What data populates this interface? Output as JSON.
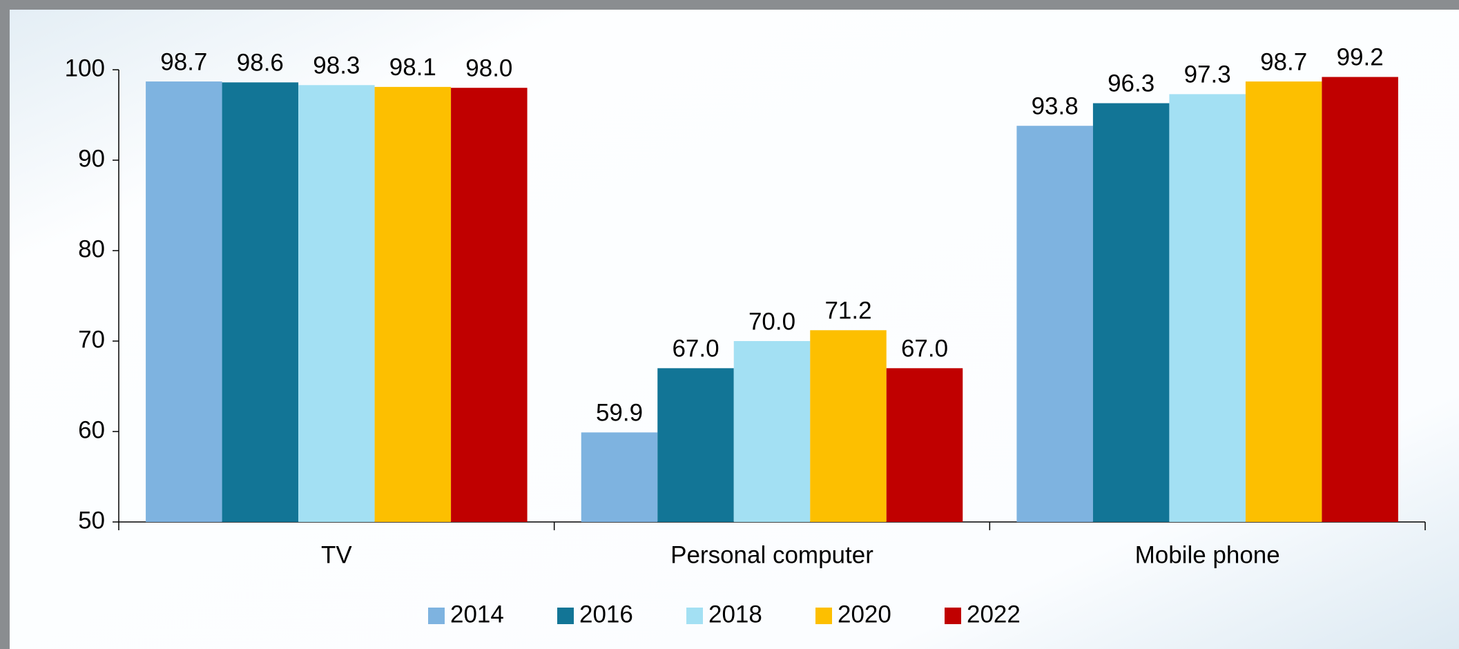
{
  "chart_data": {
    "type": "bar",
    "categories": [
      "TV",
      "Personal computer",
      "Mobile phone"
    ],
    "series": [
      {
        "name": "2014",
        "color": "#7eb3e0",
        "values": [
          98.7,
          59.9,
          93.8
        ],
        "value_labels": [
          "98.7",
          "59.9",
          "93.8"
        ]
      },
      {
        "name": "2016",
        "color": "#127596",
        "values": [
          98.6,
          67.0,
          96.3
        ],
        "value_labels": [
          "98.6",
          "67.0",
          "96.3"
        ]
      },
      {
        "name": "2018",
        "color": "#a3e0f3",
        "values": [
          98.3,
          70.0,
          97.3
        ],
        "value_labels": [
          "98.3",
          "70.0",
          "97.3"
        ]
      },
      {
        "name": "2020",
        "color": "#fdbf00",
        "values": [
          98.1,
          71.2,
          98.7
        ],
        "value_labels": [
          "98.1",
          "71.2",
          "98.7"
        ]
      },
      {
        "name": "2022",
        "color": "#c00000",
        "values": [
          98.0,
          67.0,
          99.2
        ],
        "value_labels": [
          "98.0",
          "67.0",
          "99.2"
        ]
      }
    ],
    "ylim": [
      50,
      100
    ],
    "yticks": [
      50,
      60,
      70,
      80,
      90,
      100
    ],
    "grid": false,
    "legend": "bottom"
  }
}
